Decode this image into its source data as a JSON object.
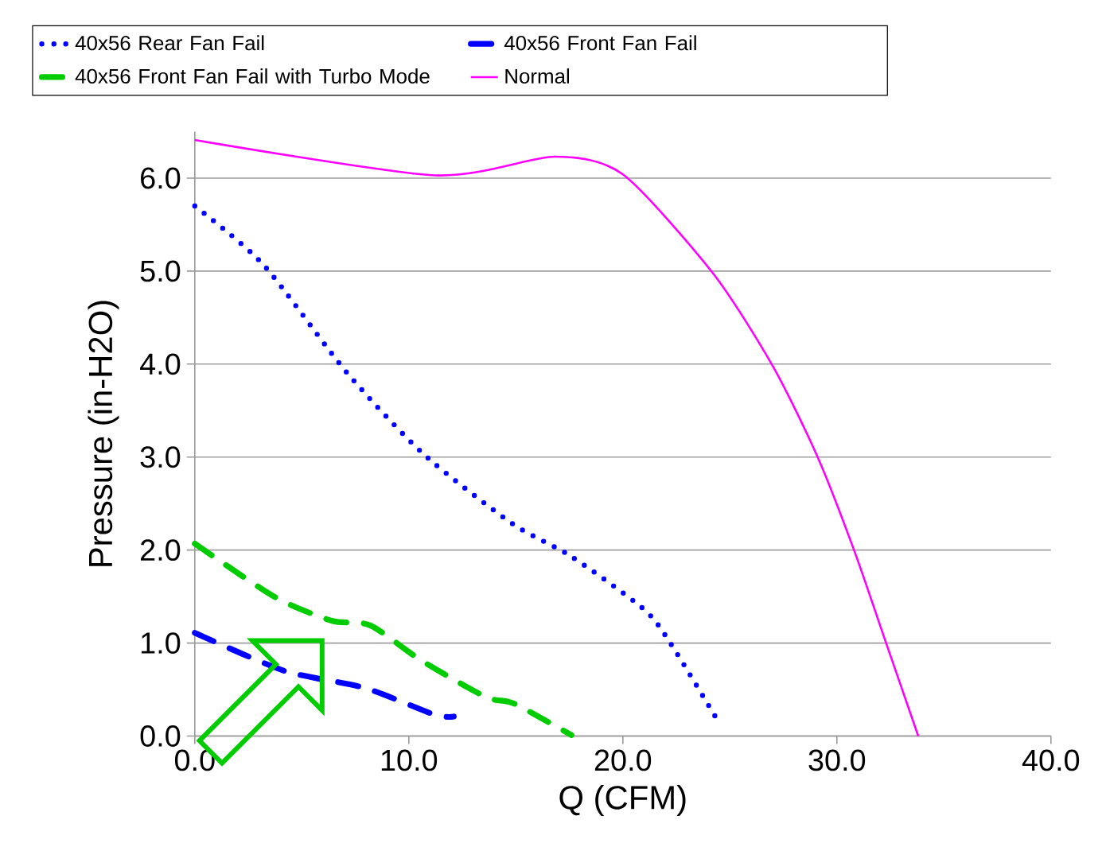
{
  "chart_data": {
    "type": "line",
    "xlabel": "Q (CFM)",
    "ylabel": "Pressure (in-H2O)",
    "xlim": [
      0,
      40
    ],
    "ylim": [
      0,
      6.5
    ],
    "xticks": [
      {
        "value": 0,
        "label": "0.0"
      },
      {
        "value": 10,
        "label": "10.0"
      },
      {
        "value": 20,
        "label": "20.0"
      },
      {
        "value": 30,
        "label": "30.0"
      },
      {
        "value": 40,
        "label": "40.0"
      }
    ],
    "yticks": [
      {
        "value": 0,
        "label": "0.0"
      },
      {
        "value": 1,
        "label": "1.0"
      },
      {
        "value": 2,
        "label": "2.0"
      },
      {
        "value": 3,
        "label": "3.0"
      },
      {
        "value": 4,
        "label": "4.0"
      },
      {
        "value": 5,
        "label": "5.0"
      },
      {
        "value": 6,
        "label": "6.0"
      }
    ],
    "grid": "y",
    "legend": "top",
    "marker": "none",
    "series": [
      {
        "name": "40x56 Rear Fan Fail",
        "color": "#0000ff",
        "line_style": "dotted",
        "x": [
          0,
          3.2,
          7.1,
          10.7,
          14.8,
          17.6,
          21.0,
          22.3,
          24.5
        ],
        "values": [
          5.7,
          5.07,
          3.91,
          3.03,
          2.29,
          1.93,
          1.36,
          0.97,
          0.14
        ]
      },
      {
        "name": "40x56 Front Fan Fail",
        "color": "#0000ff",
        "line_style": "dashed",
        "x": [
          0,
          4.2,
          7.9,
          11.2,
          12.1
        ],
        "values": [
          1.11,
          0.7,
          0.52,
          0.23,
          0.21
        ]
      },
      {
        "name": "40x56 Front Fan Fail with Turbo Mode",
        "color": "#00cc00",
        "line_style": "dashed",
        "x": [
          0,
          3.7,
          6.4,
          8.2,
          10.6,
          13.6,
          14.9,
          17.6
        ],
        "values": [
          2.07,
          1.5,
          1.24,
          1.19,
          0.81,
          0.42,
          0.35,
          0.01
        ]
      },
      {
        "name": "Normal",
        "color": "#ff00ff",
        "line_style": "solid",
        "x": [
          0,
          11.2,
          16.8,
          20.0,
          24.2,
          27.0,
          29.1,
          30.8,
          32.3,
          33.8
        ],
        "values": [
          6.41,
          6.03,
          6.23,
          6.04,
          4.98,
          3.98,
          3.0,
          2.0,
          1.0,
          0.0
        ]
      }
    ]
  }
}
